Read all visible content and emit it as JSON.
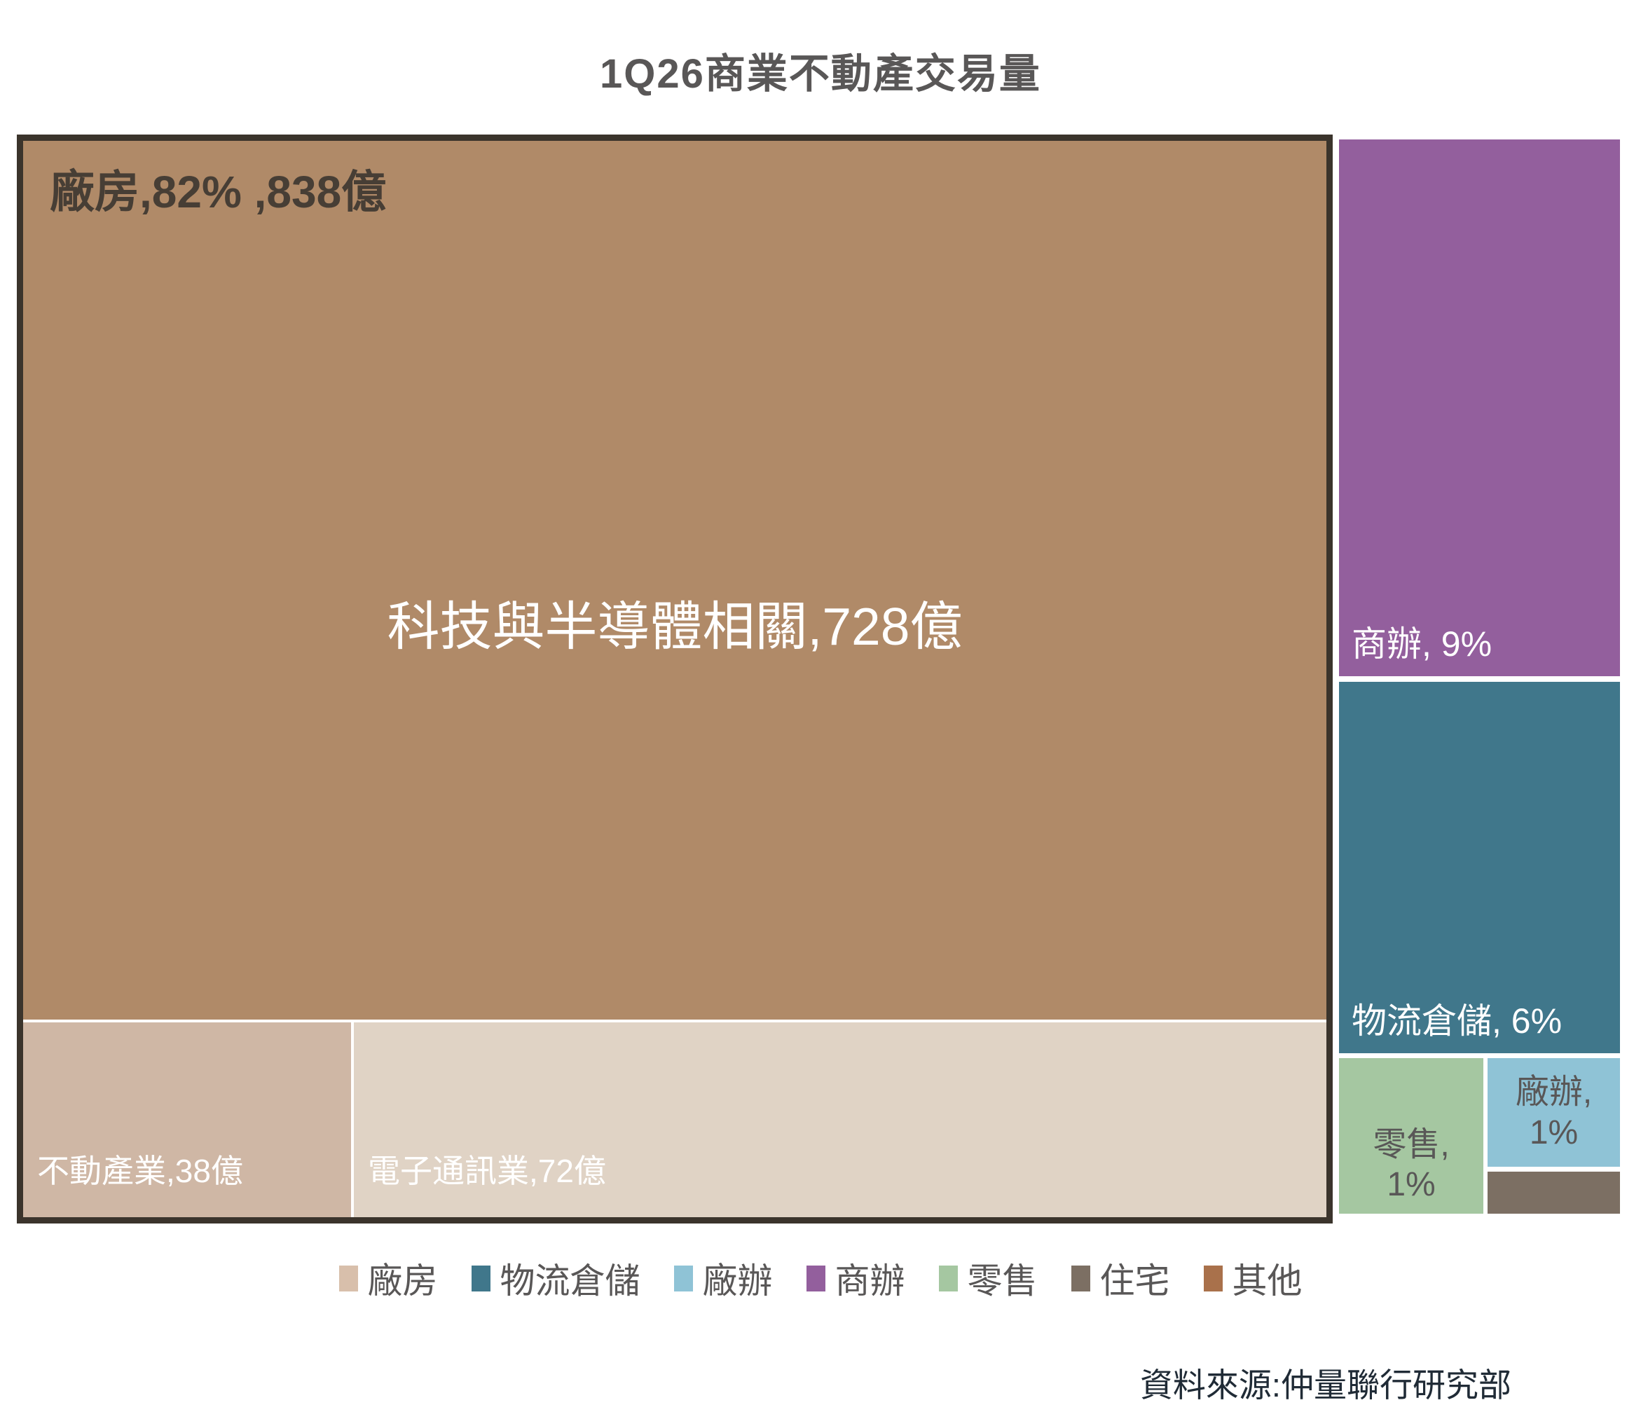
{
  "title": "1Q26商業不動產交易量",
  "treemap": {
    "factory": {
      "label": "廠房,82% ,838億",
      "tech_label": "科技與半導體相關,728億",
      "real_estate_label": "不動產業,38億",
      "electronics_label": "電子通訊業,72億"
    },
    "office": {
      "label": "商辦, 9%"
    },
    "logistics": {
      "label": "物流倉儲, 6%"
    },
    "retail": {
      "line1": "零售,",
      "line2": "1%"
    },
    "factory_office": {
      "line1": "廠辦,",
      "line2": "1%"
    }
  },
  "legend": {
    "items": [
      {
        "label": "廠房",
        "color": "#d8bfab"
      },
      {
        "label": "物流倉儲",
        "color": "#40778b"
      },
      {
        "label": "廠辦",
        "color": "#8fc3d6"
      },
      {
        "label": "商辦",
        "color": "#935f9d"
      },
      {
        "label": "零售",
        "color": "#a5c7a1"
      },
      {
        "label": "住宅",
        "color": "#7c6f63"
      },
      {
        "label": "其他",
        "color": "#a9714b"
      }
    ]
  },
  "source": "資料來源:仲量聯行研究部",
  "colors": {
    "factory_tech_block": "#b08a68",
    "factory_real_estate_block": "#cfb7a5",
    "factory_electronics_block": "#e0d3c5",
    "office_block": "#935f9d",
    "logistics_block": "#40778b",
    "retail_block": "#a5c7a1",
    "factory_office_block": "#8fc3d6",
    "residential_block": "#7c6f63",
    "box_border": "#3b342c",
    "title_text": "#595757",
    "factory_label_text": "#473e35",
    "source_text": "#202b36"
  },
  "chart_data": {
    "type": "treemap",
    "title": "1Q26商業不動產交易量",
    "unit": "億",
    "groups": [
      {
        "name": "廠房",
        "percent": 82,
        "value": 838,
        "label": "廠房,82% ,838億",
        "children": [
          {
            "name": "科技與半導體相關",
            "value": 728
          },
          {
            "name": "電子通訊業",
            "value": 72
          },
          {
            "name": "不動產業",
            "value": 38
          }
        ]
      },
      {
        "name": "商辦",
        "percent": 9
      },
      {
        "name": "物流倉儲",
        "percent": 6
      },
      {
        "name": "零售",
        "percent": 1
      },
      {
        "name": "廠辦",
        "percent": 1
      },
      {
        "name": "住宅",
        "percent": null
      },
      {
        "name": "其他",
        "percent": null
      }
    ],
    "legend_entries": [
      "廠房",
      "物流倉儲",
      "廠辦",
      "商辦",
      "零售",
      "住宅",
      "其他"
    ],
    "legend_position": "bottom",
    "source": "資料來源:仲量聯行研究部"
  }
}
